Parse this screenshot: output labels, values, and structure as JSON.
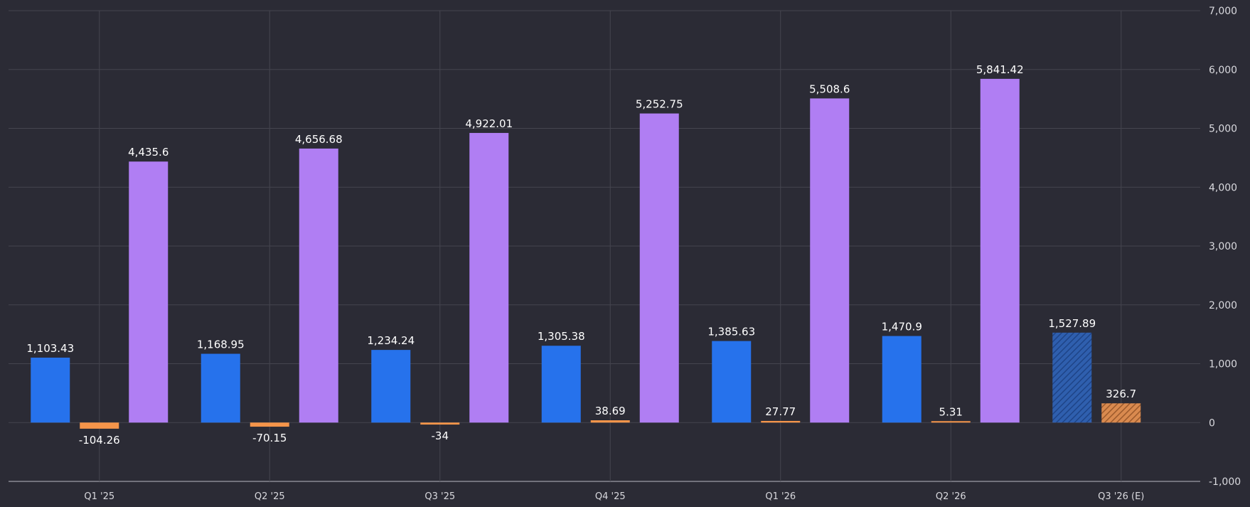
{
  "chart_data": {
    "type": "bar",
    "title": "",
    "xlabel": "",
    "ylabel": "",
    "categories": [
      "Q1 '25",
      "Q2 '25",
      "Q3 '25",
      "Q4 '25",
      "Q1 '26",
      "Q2 '26",
      "Q3 '26 (E)"
    ],
    "series": [
      {
        "color": "#2672ec",
        "values": [
          1103.43,
          1168.95,
          1234.24,
          1305.38,
          1385.63,
          1470.9,
          1527.89
        ],
        "labels": [
          "1,103.43",
          "1,168.95",
          "1,234.24",
          "1,305.38",
          "1,385.63",
          "1,470.9",
          "1,527.89"
        ]
      },
      {
        "color": "#f5954a",
        "values": [
          -104.26,
          -70.15,
          -34,
          38.69,
          27.77,
          5.31,
          326.7
        ],
        "labels": [
          "-104.26",
          "-70.15",
          "-34",
          "38.69",
          "27.77",
          "5.31",
          "326.7"
        ]
      },
      {
        "color": "#b07ef3",
        "values": [
          4435.6,
          4656.68,
          4922.01,
          5252.75,
          5508.6,
          5841.42,
          null
        ],
        "labels": [
          "4,435.6",
          "4,656.68",
          "4,922.01",
          "5,252.75",
          "5,508.6",
          "5,841.42",
          null
        ]
      }
    ],
    "estimated_categories": [
      6
    ],
    "ylim": [
      -1000,
      7000
    ],
    "yticks": [
      -1000,
      0,
      1000,
      2000,
      3000,
      4000,
      5000,
      6000,
      7000
    ],
    "ytick_labels": [
      "-1,000",
      "0",
      "1,000",
      "2,000",
      "3,000",
      "4,000",
      "5,000",
      "6,000",
      "7,000"
    ],
    "y_axis_side": "right",
    "grid": true,
    "legend": "none"
  },
  "colors": {
    "background": "#2b2b35",
    "grid": "#45454f",
    "text": "#d9d9de"
  }
}
